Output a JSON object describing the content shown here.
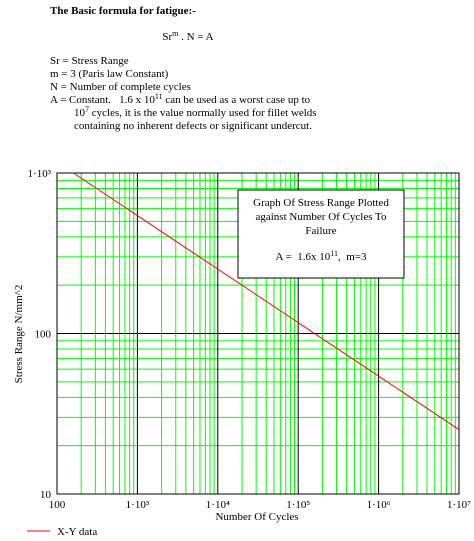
{
  "document": {
    "heading": "The Basic formula for fatigue:-",
    "formula": [
      "Sr",
      "m",
      " . N = A"
    ],
    "definitions": [
      "Sr = Stress Range",
      "m = 3 (Paris law Constant)",
      "N = Number of complete cycles"
    ],
    "note": [
      [
        "A = Constant.   1.6 x 10",
        "11",
        " can be used as a worst case up to"
      ],
      [
        "10",
        "7",
        " cycles, it is the value normally used for fillet welds"
      ],
      [
        "containing no inherent defects or significant undercut."
      ]
    ]
  },
  "chart_data": {
    "type": "line",
    "annotation": [
      [
        "Graph Of Stress Range Plotted"
      ],
      [
        "against Number Of Cycles To"
      ],
      [
        "Failure"
      ],
      [
        "A =  1.6x 10",
        "11",
        ",  m=3"
      ]
    ],
    "x_label": "Number Of Cycles",
    "y_label": "Stress Range N/mm^2",
    "x": [
      160,
      10000000
    ],
    "series": [
      {
        "name": "X-Y data",
        "color": "#ff0000",
        "values": [
          1000,
          25.2
        ]
      }
    ],
    "xlim": [
      100,
      10000000
    ],
    "ylim": [
      10,
      1000
    ],
    "xticks": [
      100,
      {
        "value": 1000,
        "label": "1·10³"
      },
      {
        "value": 10000,
        "label": "1·10⁴"
      },
      {
        "value": 100000,
        "label": "1·10⁵"
      },
      {
        "value": 1000000,
        "label": "1·10⁶"
      },
      {
        "value": 10000000,
        "label": "1·10⁷"
      }
    ],
    "yticks": [
      10,
      100,
      {
        "value": 1000,
        "label": "1·10³"
      }
    ],
    "log_x": true,
    "log_y": true,
    "grid": true,
    "grid_color": "#00ff00"
  }
}
